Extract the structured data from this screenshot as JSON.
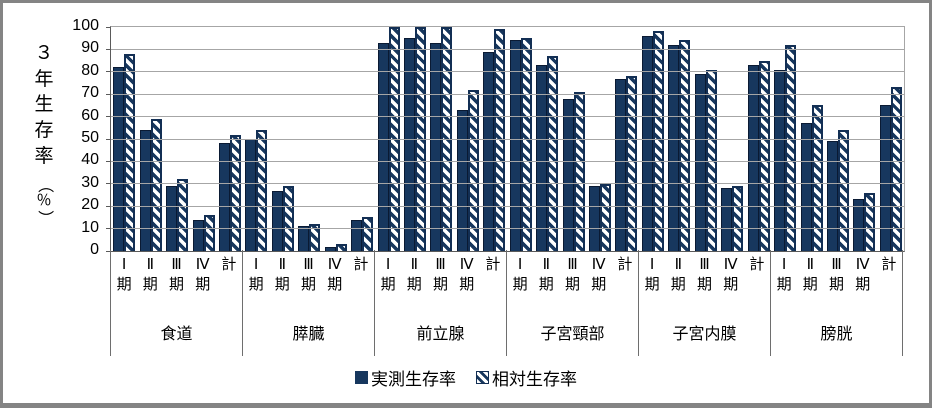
{
  "accent_color": "#17375E",
  "gridline_color": "#a6a6a6",
  "legend": {
    "observed_label": "実測生存率",
    "relative_label": "相対生存率"
  },
  "chart_data": {
    "type": "bar",
    "title": "",
    "ylabel": "３年生存率（％）",
    "ylim": [
      0,
      100
    ],
    "yticks": [
      0,
      10,
      20,
      30,
      40,
      50,
      60,
      70,
      80,
      90,
      100
    ],
    "grid": true,
    "legend_position": "bottom",
    "groups": [
      "食道",
      "膵臓",
      "前立腺",
      "子宮頸部",
      "子宮内膜",
      "膀胱"
    ],
    "stages": [
      "Ⅰ期",
      "Ⅱ期",
      "Ⅲ期",
      "Ⅳ期",
      "計"
    ],
    "series": [
      {
        "name": "実測生存率",
        "style": "solid",
        "color": "#17375E",
        "values": [
          [
            82,
            54,
            29,
            14,
            48
          ],
          [
            50,
            27,
            11,
            2,
            14
          ],
          [
            93,
            95,
            93,
            63,
            89
          ],
          [
            94,
            83,
            68,
            29,
            77
          ],
          [
            96,
            92,
            79,
            28,
            83
          ],
          [
            81,
            57,
            49,
            23,
            65
          ]
        ]
      },
      {
        "name": "相対生存率",
        "style": "hatched",
        "color": "#17375E",
        "values": [
          [
            88,
            59,
            32,
            16,
            52
          ],
          [
            54,
            29,
            12,
            3,
            15
          ],
          [
            100,
            100,
            100,
            72,
            99
          ],
          [
            95,
            87,
            71,
            30,
            78
          ],
          [
            98,
            94,
            81,
            29,
            85
          ],
          [
            92,
            65,
            54,
            26,
            73
          ]
        ]
      }
    ]
  }
}
